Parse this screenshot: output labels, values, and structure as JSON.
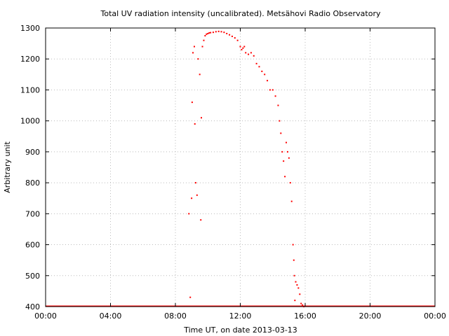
{
  "chart_data": {
    "type": "scatter",
    "title": "Total UV radiation intensity (uncalibrated). Metsähovi Radio Observatory",
    "xlabel": "Time UT, on date 2013-03-13",
    "ylabel": "Arbitrary unit",
    "xlim": [
      "00:00",
      "24:00"
    ],
    "ylim": [
      400,
      1300
    ],
    "xticks": [
      "00:00",
      "04:00",
      "08:00",
      "12:00",
      "16:00",
      "20:00",
      "00:00"
    ],
    "yticks": [
      400,
      500,
      600,
      700,
      800,
      900,
      1000,
      1100,
      1200,
      1300
    ],
    "grid": true,
    "marker_color": "#ff0000",
    "series": [
      {
        "x": [
          "08:50",
          "08:55",
          "09:00",
          "09:02",
          "09:05",
          "09:10",
          "09:12",
          "09:15",
          "09:20",
          "09:24",
          "09:30",
          "09:34",
          "09:36",
          "09:40",
          "09:45",
          "09:50",
          "09:55",
          "10:00",
          "10:05",
          "10:10",
          "10:20",
          "10:30",
          "10:40",
          "10:50",
          "11:00",
          "11:10",
          "11:20",
          "11:30",
          "11:40",
          "11:50",
          "12:00",
          "12:05",
          "12:10",
          "12:15",
          "12:20",
          "12:30",
          "12:40",
          "12:50",
          "13:00",
          "13:10",
          "13:20",
          "13:30",
          "13:40",
          "13:50",
          "14:00",
          "14:10",
          "14:20",
          "14:25",
          "14:30",
          "14:35",
          "14:40",
          "14:45",
          "14:50",
          "14:55",
          "15:00",
          "15:05",
          "15:10",
          "15:15",
          "15:18",
          "15:20",
          "15:22",
          "15:25",
          "15:30",
          "15:35",
          "15:40",
          "15:45",
          "15:50",
          "15:55"
        ],
        "y": [
          700,
          430,
          750,
          1060,
          1220,
          1240,
          990,
          800,
          760,
          1200,
          1150,
          680,
          1010,
          1240,
          1260,
          1275,
          1280,
          1282,
          1284,
          1285,
          1286,
          1288,
          1289,
          1288,
          1286,
          1282,
          1278,
          1273,
          1268,
          1260,
          1240,
          1230,
          1235,
          1240,
          1220,
          1215,
          1220,
          1210,
          1185,
          1175,
          1160,
          1150,
          1130,
          1100,
          1100,
          1080,
          1050,
          1000,
          960,
          900,
          870,
          820,
          930,
          900,
          880,
          800,
          740,
          600,
          550,
          500,
          420,
          480,
          470,
          460,
          440,
          410,
          405,
          400
        ]
      }
    ]
  }
}
